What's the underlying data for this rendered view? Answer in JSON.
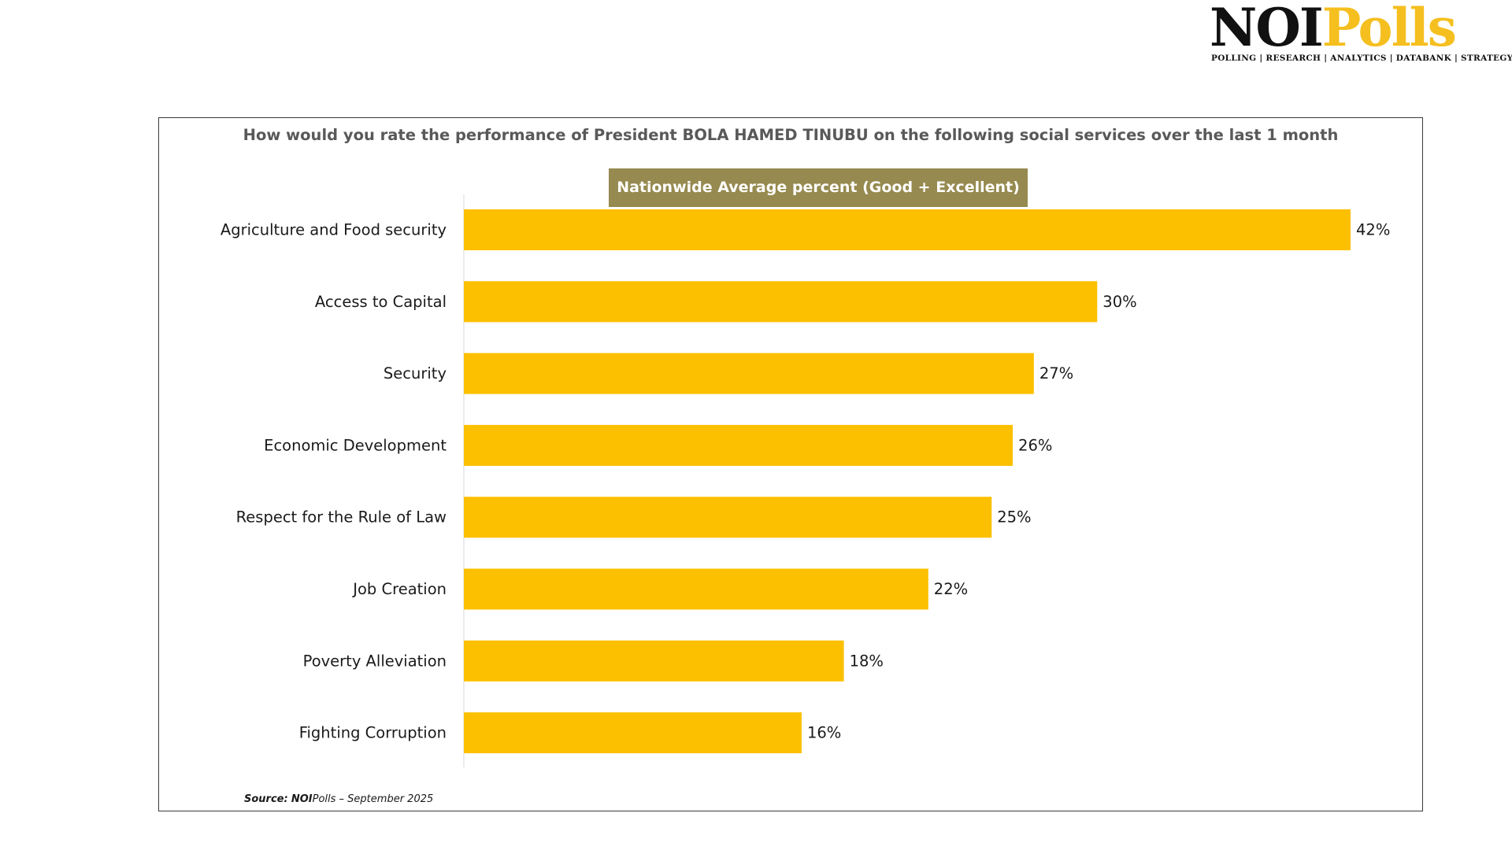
{
  "logo": {
    "noi": "NOI",
    "polls": "Polls",
    "tagline": "POLLING | RESEARCH | ANALYTICS | DATABANK | STRATEGY"
  },
  "source": {
    "label": "Source:",
    "org_bold": "NOI",
    "org_rest": "Polls",
    "date": "–  September 2025"
  },
  "colors": {
    "bar": "#fcc000",
    "subtitle_bg": "#968a50",
    "title_text": "#595959"
  },
  "chart_data": {
    "type": "bar",
    "orientation": "horizontal",
    "title": "How would you rate the performance of President BOLA HAMED TINUBU on the following social services over the last 1 month",
    "subtitle": "Nationwide Average percent (Good + Excellent)",
    "categories": [
      "Agriculture and Food security",
      "Access to Capital",
      "Security",
      "Economic Development",
      "Respect for the Rule of Law",
      "Job Creation",
      "Poverty Alleviation",
      "Fighting Corruption"
    ],
    "values": [
      42,
      30,
      27,
      26,
      25,
      22,
      18,
      16
    ],
    "value_labels": [
      "42%",
      "30%",
      "27%",
      "26%",
      "25%",
      "22%",
      "18%",
      "16%"
    ],
    "unit": "%",
    "xlim": [
      0,
      42
    ],
    "grid": false,
    "legend": "none"
  }
}
